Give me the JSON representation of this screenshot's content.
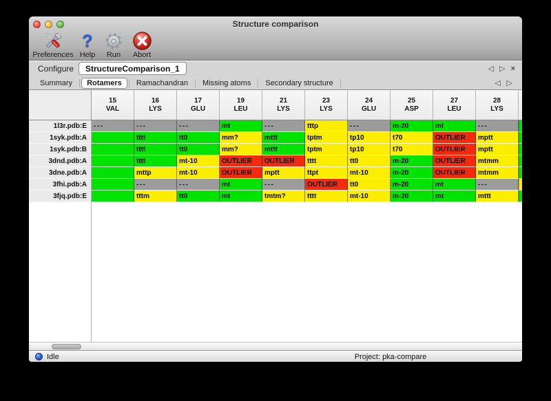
{
  "window": {
    "title": "Structure comparison"
  },
  "toolbar": {
    "items": [
      {
        "label": "Preferences",
        "icon": "tools-icon"
      },
      {
        "label": "Help",
        "icon": "help-icon"
      },
      {
        "label": "Run",
        "icon": "gear-icon"
      },
      {
        "label": "Abort",
        "icon": "abort-icon"
      }
    ]
  },
  "configure": {
    "label": "Configure",
    "value": "StructureComparison_1",
    "prev": "◁",
    "next": "▷",
    "close": "×"
  },
  "tabs": [
    {
      "label": "Summary",
      "selected": false
    },
    {
      "label": "Rotamers",
      "selected": true
    },
    {
      "label": "Ramachandran",
      "selected": false
    },
    {
      "label": "Missing atoms",
      "selected": false
    },
    {
      "label": "Secondary structure",
      "selected": false
    }
  ],
  "tab_nav": {
    "prev": "◁",
    "next": "▷"
  },
  "colors": {
    "green": "#00e300",
    "yellow": "#fdee00",
    "red": "#f52a0c",
    "gray": "#9c9c9c"
  },
  "table": {
    "columns": [
      {
        "num": "15",
        "res": "VAL"
      },
      {
        "num": "16",
        "res": "LYS"
      },
      {
        "num": "17",
        "res": "GLU"
      },
      {
        "num": "19",
        "res": "LEU"
      },
      {
        "num": "21",
        "res": "LYS"
      },
      {
        "num": "23",
        "res": "LYS"
      },
      {
        "num": "24",
        "res": "GLU"
      },
      {
        "num": "25",
        "res": "ASP"
      },
      {
        "num": "27",
        "res": "LEU"
      },
      {
        "num": "28",
        "res": "LYS"
      }
    ],
    "rows": [
      {
        "label": "1l3r.pdb:E",
        "sliver": "green",
        "cells": [
          {
            "t": "---",
            "c": "gray"
          },
          {
            "t": "---",
            "c": "gray"
          },
          {
            "t": "---",
            "c": "gray"
          },
          {
            "t": "mt",
            "c": "green"
          },
          {
            "t": "---",
            "c": "gray"
          },
          {
            "t": "tttp",
            "c": "yellow"
          },
          {
            "t": "---",
            "c": "gray"
          },
          {
            "t": "m-20",
            "c": "green"
          },
          {
            "t": "mt",
            "c": "green"
          },
          {
            "t": "---",
            "c": "gray"
          }
        ]
      },
      {
        "label": "1syk.pdb:A",
        "sliver": "green",
        "cells": [
          {
            "t": "",
            "c": "green"
          },
          {
            "t": "tttt",
            "c": "green"
          },
          {
            "t": "tt0",
            "c": "green"
          },
          {
            "t": "mm?",
            "c": "yellow"
          },
          {
            "t": "mttt",
            "c": "green"
          },
          {
            "t": "tptm",
            "c": "yellow"
          },
          {
            "t": "tp10",
            "c": "yellow"
          },
          {
            "t": "t70",
            "c": "yellow"
          },
          {
            "t": "OUTLIER",
            "c": "red"
          },
          {
            "t": "mptt",
            "c": "yellow"
          }
        ]
      },
      {
        "label": "1syk.pdb:B",
        "sliver": "green",
        "cells": [
          {
            "t": "",
            "c": "green"
          },
          {
            "t": "tttt",
            "c": "green"
          },
          {
            "t": "tt0",
            "c": "green"
          },
          {
            "t": "mm?",
            "c": "yellow"
          },
          {
            "t": "mttt",
            "c": "green"
          },
          {
            "t": "tptm",
            "c": "yellow"
          },
          {
            "t": "tp10",
            "c": "yellow"
          },
          {
            "t": "t70",
            "c": "yellow"
          },
          {
            "t": "OUTLIER",
            "c": "red"
          },
          {
            "t": "mptt",
            "c": "yellow"
          }
        ]
      },
      {
        "label": "3dnd.pdb:A",
        "sliver": "green",
        "cells": [
          {
            "t": "",
            "c": "green"
          },
          {
            "t": "tttt",
            "c": "green"
          },
          {
            "t": "mt-10",
            "c": "yellow"
          },
          {
            "t": "OUTLIER",
            "c": "red"
          },
          {
            "t": "OUTLIER",
            "c": "red"
          },
          {
            "t": "tttt",
            "c": "yellow"
          },
          {
            "t": "tt0",
            "c": "yellow"
          },
          {
            "t": "m-20",
            "c": "green"
          },
          {
            "t": "OUTLIER",
            "c": "red"
          },
          {
            "t": "mtmm",
            "c": "yellow"
          }
        ]
      },
      {
        "label": "3dne.pdb:A",
        "sliver": "green",
        "cells": [
          {
            "t": "",
            "c": "green"
          },
          {
            "t": "mttp",
            "c": "yellow"
          },
          {
            "t": "mt-10",
            "c": "yellow"
          },
          {
            "t": "OUTLIER",
            "c": "red"
          },
          {
            "t": "mptt",
            "c": "yellow"
          },
          {
            "t": "ttpt",
            "c": "yellow"
          },
          {
            "t": "mt-10",
            "c": "yellow"
          },
          {
            "t": "m-20",
            "c": "green"
          },
          {
            "t": "OUTLIER",
            "c": "red"
          },
          {
            "t": "mtmm",
            "c": "yellow"
          }
        ]
      },
      {
        "label": "3fhi.pdb:A",
        "sliver": "yellow",
        "cells": [
          {
            "t": "",
            "c": "green"
          },
          {
            "t": "---",
            "c": "gray"
          },
          {
            "t": "---",
            "c": "gray"
          },
          {
            "t": "mt",
            "c": "green"
          },
          {
            "t": "---",
            "c": "gray"
          },
          {
            "t": "OUTLIER",
            "c": "red"
          },
          {
            "t": "tt0",
            "c": "yellow"
          },
          {
            "t": "m-20",
            "c": "green"
          },
          {
            "t": "mt",
            "c": "green"
          },
          {
            "t": "---",
            "c": "gray"
          }
        ]
      },
      {
        "label": "3fjq.pdb:E",
        "sliver": "green",
        "cells": [
          {
            "t": "",
            "c": "green"
          },
          {
            "t": "tttm",
            "c": "yellow"
          },
          {
            "t": "tt0",
            "c": "green"
          },
          {
            "t": "mt",
            "c": "green"
          },
          {
            "t": "tmtm?",
            "c": "yellow"
          },
          {
            "t": "tttt",
            "c": "yellow"
          },
          {
            "t": "mt-10",
            "c": "yellow"
          },
          {
            "t": "m-20",
            "c": "green"
          },
          {
            "t": "mt",
            "c": "green"
          },
          {
            "t": "mttt",
            "c": "yellow"
          }
        ]
      }
    ]
  },
  "status": {
    "state": "Idle",
    "project": "Project: pka-compare"
  }
}
